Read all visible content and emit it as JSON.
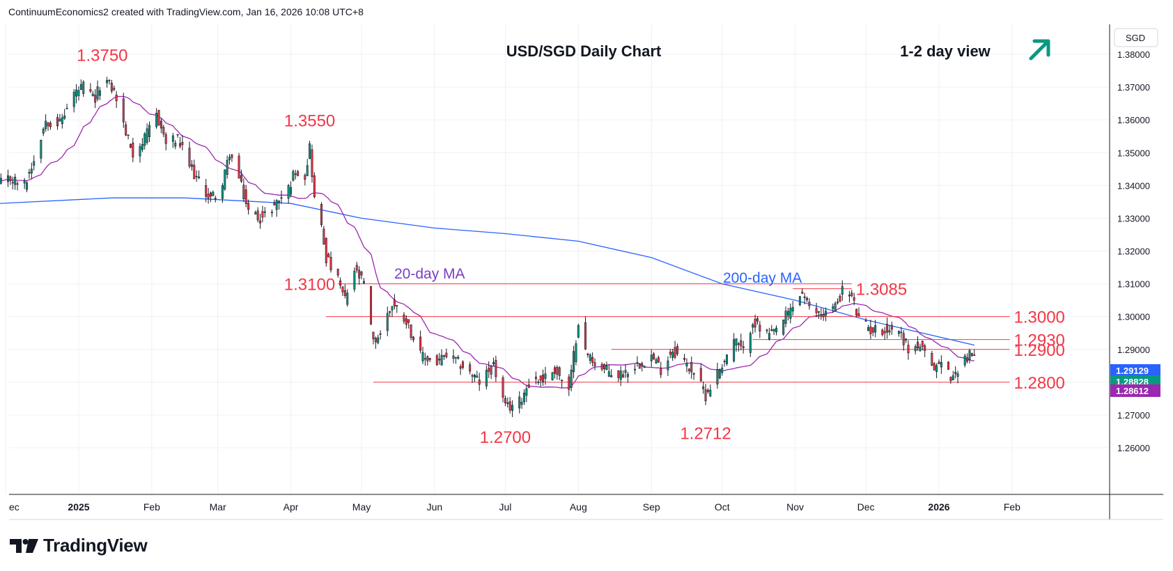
{
  "header": {
    "attribution": "ContinuumEconomics2 created with TradingView.com, Jan 16, 2026 10:08 UTC+8"
  },
  "branding": {
    "logo_text": "TradingView",
    "logo_icon": "tradingview-logo-icon"
  },
  "chart_data": {
    "type": "candlestick",
    "title": "USD/SGD Daily Chart",
    "view_label": "1-2 day view",
    "view_arrow": "up-right-arrow-icon",
    "currency": "SGD",
    "ylim": [
      1.255,
      1.387
    ],
    "y_ticks": [
      "1.38000",
      "1.37000",
      "1.36000",
      "1.35000",
      "1.34000",
      "1.33000",
      "1.32000",
      "1.31000",
      "1.30000",
      "1.29000",
      "1.28000",
      "1.27000",
      "1.26000"
    ],
    "x_ticks": [
      {
        "label": "ec",
        "date": "2024-12-01",
        "bold": false
      },
      {
        "label": "2025",
        "date": "2025-01-01",
        "bold": true
      },
      {
        "label": "Feb",
        "date": "2025-02-01",
        "bold": false
      },
      {
        "label": "Mar",
        "date": "2025-03-01",
        "bold": false
      },
      {
        "label": "Apr",
        "date": "2025-04-01",
        "bold": false
      },
      {
        "label": "May",
        "date": "2025-05-01",
        "bold": false
      },
      {
        "label": "Jun",
        "date": "2025-06-01",
        "bold": false
      },
      {
        "label": "Jul",
        "date": "2025-07-01",
        "bold": false
      },
      {
        "label": "Aug",
        "date": "2025-08-01",
        "bold": false
      },
      {
        "label": "Sep",
        "date": "2025-09-01",
        "bold": false
      },
      {
        "label": "Oct",
        "date": "2025-10-01",
        "bold": false
      },
      {
        "label": "Nov",
        "date": "2025-11-01",
        "bold": false
      },
      {
        "label": "Dec",
        "date": "2025-12-01",
        "bold": false
      },
      {
        "label": "2026",
        "date": "2026-01-01",
        "bold": true
      },
      {
        "label": "Feb",
        "date": "2026-02-01",
        "bold": false
      }
    ],
    "price_badges": [
      {
        "value": "1.29129",
        "color": "#2962ff"
      },
      {
        "value": "1.28828",
        "color": "#089981"
      },
      {
        "value": "1.28612",
        "color": "#9c27b0"
      }
    ],
    "ma_labels": [
      {
        "text": "20-day MA",
        "color": "#7b3fc4"
      },
      {
        "text": "200-day MA",
        "color": "#2962ff"
      }
    ],
    "colors": {
      "up": "#089981",
      "down": "#f23645",
      "ma20": "#9c27b0",
      "ma200": "#2962ff",
      "level": "#f23645",
      "grid": "#eef0f3"
    },
    "levels": [
      {
        "label": "1.3100",
        "value": 1.31,
        "from": "2025-04-21",
        "to": "2025-11-25",
        "label_side": "left"
      },
      {
        "label": "1.3085",
        "value": 1.3085,
        "from": "2025-10-31",
        "to": "2025-11-25",
        "label_side": "right"
      },
      {
        "label": "1.3000",
        "value": 1.3,
        "from": "2025-04-16",
        "to": "2026-01-31",
        "label_side": "right"
      },
      {
        "label": "1.2930",
        "value": 1.293,
        "from": "2025-10-14",
        "to": "2026-01-31",
        "label_side": "right"
      },
      {
        "label": "1.2900",
        "value": 1.29,
        "from": "2025-08-15",
        "to": "2026-01-31",
        "label_side": "right"
      },
      {
        "label": "1.2800",
        "value": 1.28,
        "from": "2025-05-06",
        "to": "2026-01-31",
        "label_side": "right"
      }
    ],
    "swing_labels": [
      {
        "label": "1.3750",
        "date": "2025-01-11",
        "value": 1.375,
        "pos": "above"
      },
      {
        "label": "1.3550",
        "date": "2025-04-09",
        "value": 1.355,
        "pos": "above"
      },
      {
        "label": "1.2700",
        "date": "2025-07-01",
        "value": 1.27,
        "pos": "below"
      },
      {
        "label": "1.2712",
        "date": "2025-09-24",
        "value": 1.2712,
        "pos": "below"
      }
    ],
    "anchors": [
      [
        "2024-11-28",
        1.34
      ],
      [
        "2024-12-03",
        1.342
      ],
      [
        "2024-12-09",
        1.34
      ],
      [
        "2024-12-13",
        1.348
      ],
      [
        "2024-12-18",
        1.36
      ],
      [
        "2024-12-24",
        1.359
      ],
      [
        "2024-12-30",
        1.368
      ],
      [
        "2025-01-03",
        1.37
      ],
      [
        "2025-01-08",
        1.366
      ],
      [
        "2025-01-11",
        1.373
      ],
      [
        "2025-01-16",
        1.369
      ],
      [
        "2025-01-21",
        1.356
      ],
      [
        "2025-01-24",
        1.35
      ],
      [
        "2025-01-29",
        1.354
      ],
      [
        "2025-02-03",
        1.362
      ],
      [
        "2025-02-07",
        1.353
      ],
      [
        "2025-02-12",
        1.354
      ],
      [
        "2025-02-17",
        1.346
      ],
      [
        "2025-02-21",
        1.341
      ],
      [
        "2025-02-26",
        1.336
      ],
      [
        "2025-03-03",
        1.34
      ],
      [
        "2025-03-06",
        1.35
      ],
      [
        "2025-03-10",
        1.342
      ],
      [
        "2025-03-14",
        1.332
      ],
      [
        "2025-03-20",
        1.33
      ],
      [
        "2025-03-25",
        1.334
      ],
      [
        "2025-03-31",
        1.339
      ],
      [
        "2025-04-03",
        1.345
      ],
      [
        "2025-04-07",
        1.343
      ],
      [
        "2025-04-09",
        1.352
      ],
      [
        "2025-04-11",
        1.336
      ],
      [
        "2025-04-14",
        1.327
      ],
      [
        "2025-04-16",
        1.318
      ],
      [
        "2025-04-21",
        1.311
      ],
      [
        "2025-04-24",
        1.305
      ],
      [
        "2025-04-28",
        1.314
      ],
      [
        "2025-05-02",
        1.31
      ],
      [
        "2025-05-06",
        1.292
      ],
      [
        "2025-05-09",
        1.295
      ],
      [
        "2025-05-14",
        1.304
      ],
      [
        "2025-05-20",
        1.299
      ],
      [
        "2025-05-26",
        1.288
      ],
      [
        "2025-06-02",
        1.286
      ],
      [
        "2025-06-06",
        1.288
      ],
      [
        "2025-06-13",
        1.285
      ],
      [
        "2025-06-20",
        1.28
      ],
      [
        "2025-06-26",
        1.285
      ],
      [
        "2025-07-01",
        1.272
      ],
      [
        "2025-07-07",
        1.274
      ],
      [
        "2025-07-11",
        1.28
      ],
      [
        "2025-07-17",
        1.281
      ],
      [
        "2025-07-22",
        1.284
      ],
      [
        "2025-07-28",
        1.277
      ],
      [
        "2025-08-01",
        1.299
      ],
      [
        "2025-08-04",
        1.289
      ],
      [
        "2025-08-11",
        1.284
      ],
      [
        "2025-08-18",
        1.282
      ],
      [
        "2025-08-25",
        1.285
      ],
      [
        "2025-09-01",
        1.288
      ],
      [
        "2025-09-05",
        1.284
      ],
      [
        "2025-09-10",
        1.29
      ],
      [
        "2025-09-15",
        1.286
      ],
      [
        "2025-09-19",
        1.283
      ],
      [
        "2025-09-24",
        1.276
      ],
      [
        "2025-09-29",
        1.283
      ],
      [
        "2025-10-03",
        1.288
      ],
      [
        "2025-10-06",
        1.293
      ],
      [
        "2025-10-10",
        1.289
      ],
      [
        "2025-10-14",
        1.299
      ],
      [
        "2025-10-17",
        1.296
      ],
      [
        "2025-10-22",
        1.294
      ],
      [
        "2025-10-27",
        1.299
      ],
      [
        "2025-10-31",
        1.303
      ],
      [
        "2025-11-04",
        1.3075
      ],
      [
        "2025-11-07",
        1.302
      ],
      [
        "2025-11-13",
        1.301
      ],
      [
        "2025-11-18",
        1.303
      ],
      [
        "2025-11-21",
        1.308
      ],
      [
        "2025-11-25",
        1.306
      ],
      [
        "2025-11-28",
        1.299
      ],
      [
        "2025-12-03",
        1.296
      ],
      [
        "2025-12-09",
        1.296
      ],
      [
        "2025-12-15",
        1.296
      ],
      [
        "2025-12-19",
        1.29
      ],
      [
        "2025-12-24",
        1.291
      ],
      [
        "2025-12-29",
        1.284
      ],
      [
        "2026-01-02",
        1.286
      ],
      [
        "2026-01-07",
        1.281
      ],
      [
        "2026-01-10",
        1.286
      ],
      [
        "2026-01-13",
        1.288
      ],
      [
        "2026-01-16",
        1.2883
      ]
    ],
    "ma200_anchors": [
      [
        "2024-11-28",
        1.3345
      ],
      [
        "2025-01-15",
        1.3362
      ],
      [
        "2025-02-15",
        1.3362
      ],
      [
        "2025-04-01",
        1.3345
      ],
      [
        "2025-05-01",
        1.33
      ],
      [
        "2025-06-01",
        1.327
      ],
      [
        "2025-07-01",
        1.3253
      ],
      [
        "2025-08-01",
        1.323
      ],
      [
        "2025-09-01",
        1.318
      ],
      [
        "2025-10-01",
        1.31
      ],
      [
        "2025-11-01",
        1.305
      ],
      [
        "2025-12-01",
        1.299
      ],
      [
        "2026-01-16",
        1.2913
      ]
    ]
  }
}
